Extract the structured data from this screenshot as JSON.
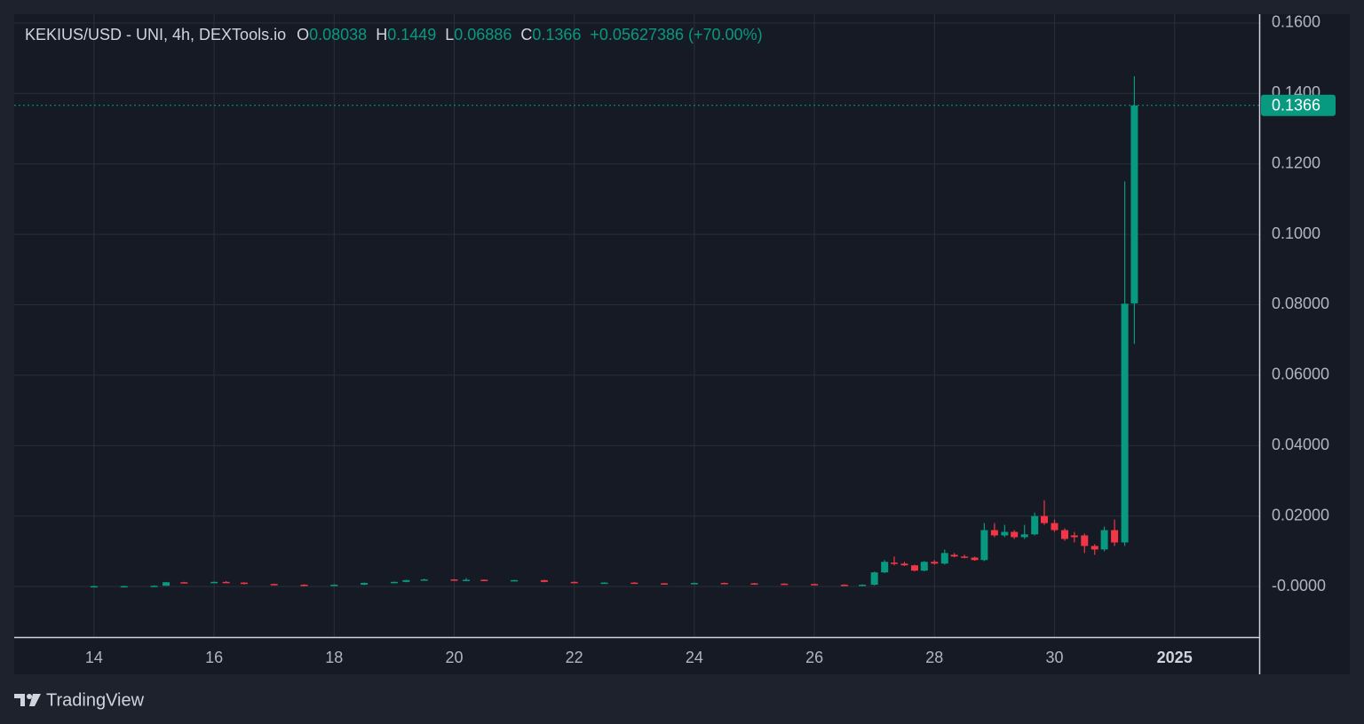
{
  "chart_data": {
    "type": "candlestick",
    "header": {
      "symbol": "KEKIUS/USD - UNI, 4h, DEXTools.io",
      "items": [
        {
          "key": "O",
          "value": "0.08038"
        },
        {
          "key": "H",
          "value": "0.1449"
        },
        {
          "key": "L",
          "value": "0.06886"
        },
        {
          "key": "C",
          "value": "0.1366"
        }
      ],
      "change": "+0.05627386 (+70.00%)"
    },
    "x": [
      14.0,
      14.5,
      15.0,
      15.2,
      15.5,
      16.0,
      16.2,
      16.5,
      17.0,
      17.5,
      18.0,
      18.5,
      19.0,
      19.2,
      19.5,
      20.0,
      20.2,
      20.5,
      21.0,
      21.5,
      22.0,
      22.5,
      23.0,
      23.5,
      24.0,
      24.5,
      25.0,
      25.5,
      26.0,
      26.5,
      26.8,
      27.0,
      27.17,
      27.33,
      27.5,
      27.67,
      27.83,
      28.0,
      28.17,
      28.33,
      28.5,
      28.67,
      28.83,
      29.0,
      29.17,
      29.33,
      29.5,
      29.67,
      29.83,
      30.0,
      30.17,
      30.33,
      30.5,
      30.67,
      30.83,
      31.0,
      31.17,
      31.33
    ],
    "open": [
      0.0001,
      0.0001,
      0.0001,
      0.0002,
      0.0012,
      0.0011,
      0.0013,
      0.0011,
      0.0007,
      0.0005,
      0.0002,
      0.0005,
      0.001,
      0.0013,
      0.0018,
      0.002,
      0.0017,
      0.0019,
      0.0016,
      0.0018,
      0.0013,
      0.001,
      0.0011,
      0.0009,
      0.0007,
      0.001,
      0.0009,
      0.0008,
      0.0007,
      0.0005,
      0.0002,
      0.0005,
      0.004,
      0.0068,
      0.0065,
      0.006,
      0.0045,
      0.007,
      0.0065,
      0.009,
      0.0085,
      0.0082,
      0.0075,
      0.016,
      0.0145,
      0.0155,
      0.014,
      0.0148,
      0.02,
      0.018,
      0.016,
      0.0145,
      0.0145,
      0.0115,
      0.0105,
      0.016,
      0.0125,
      0.08038
    ],
    "high": [
      0.0002,
      0.0002,
      0.0003,
      0.0013,
      0.0013,
      0.0014,
      0.0015,
      0.0012,
      0.0008,
      0.0006,
      0.0006,
      0.0011,
      0.0014,
      0.0019,
      0.0022,
      0.0021,
      0.0024,
      0.002,
      0.0019,
      0.0019,
      0.0014,
      0.0012,
      0.0012,
      0.001,
      0.0011,
      0.0011,
      0.001,
      0.0009,
      0.0008,
      0.0006,
      0.0006,
      0.0042,
      0.0075,
      0.0085,
      0.007,
      0.0062,
      0.0072,
      0.0075,
      0.0105,
      0.0095,
      0.009,
      0.0085,
      0.018,
      0.018,
      0.0175,
      0.016,
      0.0175,
      0.021,
      0.0245,
      0.019,
      0.0165,
      0.0155,
      0.015,
      0.012,
      0.017,
      0.019,
      0.115,
      0.1449
    ],
    "low": [
      0.0,
      0.0,
      0.0001,
      0.0002,
      0.0009,
      0.001,
      0.001,
      0.0006,
      0.0004,
      0.0001,
      0.0001,
      0.0004,
      0.0009,
      0.0012,
      0.0017,
      0.0016,
      0.0016,
      0.0015,
      0.0015,
      0.0012,
      0.0009,
      0.0009,
      0.0008,
      0.0006,
      0.0006,
      0.0008,
      0.0007,
      0.0006,
      0.0004,
      0.0001,
      0.0001,
      0.0003,
      0.0038,
      0.006,
      0.0058,
      0.0043,
      0.0043,
      0.0062,
      0.0062,
      0.0083,
      0.008,
      0.0073,
      0.0072,
      0.014,
      0.014,
      0.0135,
      0.0135,
      0.0145,
      0.0175,
      0.0155,
      0.013,
      0.0125,
      0.0095,
      0.009,
      0.01,
      0.0115,
      0.0115,
      0.06886
    ],
    "close": [
      0.0001,
      0.0001,
      0.0002,
      0.0012,
      0.001,
      0.0013,
      0.0011,
      0.0007,
      0.0005,
      0.0002,
      0.0005,
      0.001,
      0.0013,
      0.0018,
      0.002,
      0.0017,
      0.0019,
      0.0016,
      0.0018,
      0.0013,
      0.001,
      0.0011,
      0.0009,
      0.0007,
      0.001,
      0.0009,
      0.0008,
      0.0007,
      0.0005,
      0.0002,
      0.0005,
      0.004,
      0.007,
      0.0065,
      0.006,
      0.0045,
      0.007,
      0.0065,
      0.0095,
      0.0085,
      0.0082,
      0.0075,
      0.016,
      0.0145,
      0.0155,
      0.014,
      0.0148,
      0.02,
      0.018,
      0.016,
      0.0135,
      0.014,
      0.0115,
      0.0105,
      0.016,
      0.0125,
      0.0803,
      0.1366
    ],
    "up_color": "#089981",
    "down_color": "#f23645",
    "xlim": [
      12.67,
      33.41
    ],
    "xticks": [
      14,
      16,
      18,
      20,
      22,
      24,
      26,
      28,
      30,
      {
        "value": 32,
        "label": "2025"
      }
    ],
    "ylim": [
      -0.01436,
      0.1625
    ],
    "yticks": [
      {
        "value": 0.16,
        "label": "0.1600"
      },
      {
        "value": 0.14,
        "label": "0.1400"
      },
      {
        "value": 0.12,
        "label": "0.1200"
      },
      {
        "value": 0.1,
        "label": "0.1000"
      },
      {
        "value": 0.08,
        "label": "0.08000"
      },
      {
        "value": 0.06,
        "label": "0.06000"
      },
      {
        "value": 0.04,
        "label": "0.04000"
      },
      {
        "value": 0.02,
        "label": "0.02000"
      },
      {
        "value": 0,
        "label": "-0.0000"
      }
    ],
    "grid": true,
    "last_price": {
      "value": 0.1366,
      "label": "0.1366"
    },
    "brand": "TradingView"
  }
}
